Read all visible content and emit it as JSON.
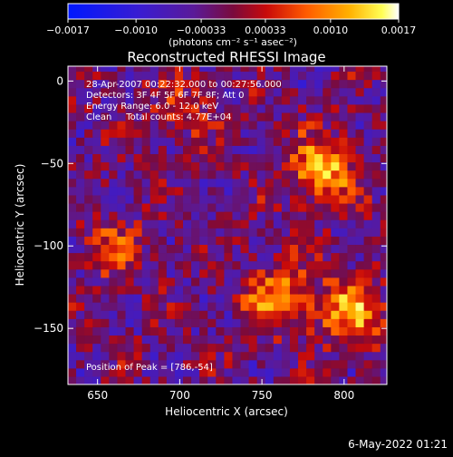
{
  "chart_data": {
    "type": "heatmap",
    "title": "Reconstructed RHESSI Image",
    "xlabel": "Heliocentric X (arcsec)",
    "ylabel": "Heliocentric Y (arcsec)",
    "xlim": [
      632,
      826
    ],
    "ylim": [
      -184,
      9
    ],
    "x_ticks": [
      650,
      700,
      750,
      800
    ],
    "x_tick_labels": [
      "650",
      "700",
      "750",
      "800"
    ],
    "y_ticks": [
      0,
      -50,
      -100,
      -150
    ],
    "y_tick_labels": [
      "0",
      "−50",
      "−100",
      "−150"
    ],
    "colorbar": {
      "min": -0.0017,
      "max": 0.0017,
      "ticks": [
        -0.0017,
        -0.001,
        -0.00033,
        0.00033,
        0.001,
        0.0017
      ],
      "tick_labels": [
        "−0.0017",
        "−0.0010",
        "−0.00033",
        "0.00033",
        "0.0010",
        "0.0017"
      ],
      "unit_label": "(photons cm⁻² s⁻¹ asec⁻²)",
      "colormap": "blue-purple-red-orange-yellow-white"
    },
    "annotations": [
      "28-Apr-2007 00:22:32.000 to 00:27:56.000",
      "Detectors: 3F 4F 5F 6F 7F 8F; Att 0",
      "Energy Range: 6.0 - 12.0 keV",
      "Clean     Total counts: 4.77E+04"
    ],
    "peak_label": "Position of Peak = [786,-54]",
    "peak": [
      786,
      -54
    ],
    "bright_regions": [
      {
        "x": 786,
        "y": -54,
        "value": 0.0017
      },
      {
        "x": 805,
        "y": -140,
        "value": 0.0015
      },
      {
        "x": 760,
        "y": -130,
        "value": 0.0014
      },
      {
        "x": 660,
        "y": -100,
        "value": 0.0008
      },
      {
        "x": 700,
        "y": -20,
        "value": 0.0006
      }
    ],
    "grid": false
  },
  "footer": {
    "date": "6-May-2022 01:21"
  }
}
